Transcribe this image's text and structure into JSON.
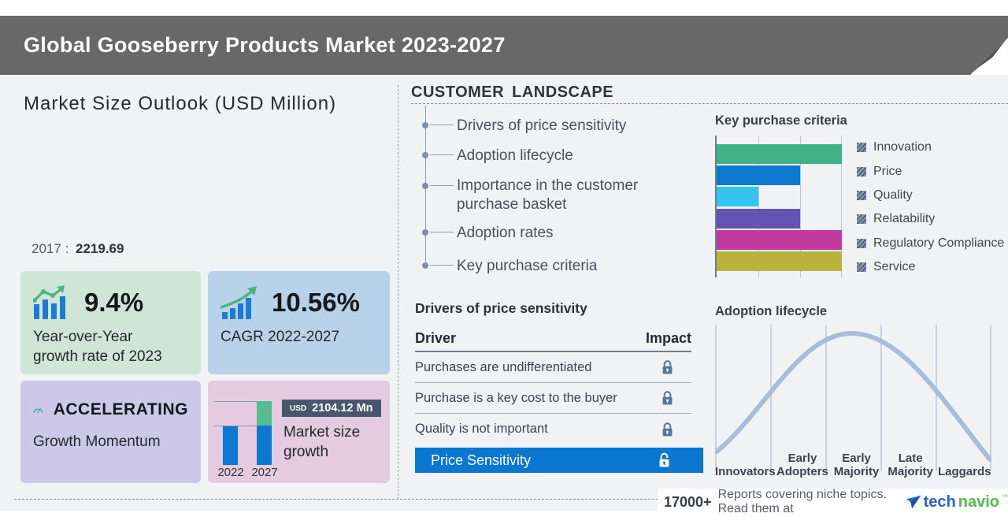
{
  "header": {
    "title": "Global Gooseberry Products Market 2023-2027"
  },
  "market_outlook": {
    "title": "Market Size Outlook (USD Million)",
    "base_year": {
      "year": "2017",
      "separator": ":",
      "value": "2219.69"
    },
    "cards": {
      "yoy": {
        "value": "9.4%",
        "label_line1": "Year-over-Year",
        "label_line2": "growth rate of 2023",
        "bg": "#cfe6d7",
        "icon": "bar-chart-trend-up"
      },
      "cagr": {
        "value": "10.56%",
        "label": "CAGR 2022-2027",
        "bg": "#b7d2e9",
        "icon": "growth-arrow-bars"
      },
      "momentum": {
        "value": "ACCELERATING",
        "label": "Growth Momentum",
        "bg": "#cdc7e8",
        "icon": "speedometer"
      }
    }
  },
  "customer_landscape": {
    "title": "CUSTOMER LANDSCAPE",
    "items": [
      "Drivers of price sensitivity",
      "Adoption lifecycle",
      "Importance in the customer purchase basket",
      "Adoption rates",
      "Key purchase criteria"
    ]
  },
  "price_sensitivity_table": {
    "title": "Drivers of price sensitivity",
    "columns": [
      "Driver",
      "Impact"
    ],
    "rows": [
      {
        "driver": "Purchases are undifferentiated",
        "impact_icon": "lock-closed"
      },
      {
        "driver": "Purchase is a key cost to the buyer",
        "impact_icon": "lock-closed"
      },
      {
        "driver": "Quality is not important",
        "impact_icon": "lock-closed"
      },
      {
        "driver": "Price Sensitivity",
        "impact_icon": "lock-open",
        "highlighted": true
      }
    ],
    "highlight_color": "#0a78d0"
  },
  "chart_data": [
    {
      "id": "key-purchase-criteria",
      "type": "bar",
      "orientation": "horizontal",
      "title": "Key purchase criteria",
      "categories": [
        "Innovation",
        "Price",
        "Quality",
        "Relatability",
        "Regulatory Compliance",
        "Service"
      ],
      "values": [
        3,
        2,
        1,
        2,
        3,
        3
      ],
      "xlim": [
        0,
        3
      ],
      "grid": true,
      "legend_position": "right",
      "colors": [
        "#3fb289",
        "#0b79cf",
        "#35c3f2",
        "#6354b4",
        "#c13a9f",
        "#bab23d"
      ]
    },
    {
      "id": "adoption-lifecycle",
      "type": "line",
      "curve": "bell",
      "title": "Adoption lifecycle",
      "segments": [
        "Innovators",
        "Early Adopters",
        "Early Majority",
        "Late Majority",
        "Laggards"
      ],
      "line_color": "#a9bdd6",
      "grid": true
    },
    {
      "id": "market-size-growth",
      "type": "bar",
      "categories": [
        "2022",
        "2027"
      ],
      "values_relative": [
        1,
        1.65
      ],
      "badge": {
        "currency": "USD",
        "amount": "2104.12 Mn"
      },
      "label_line1": "Market size",
      "label_line2": "growth",
      "colors": {
        "base": "#0b79cf",
        "growth": "#52bd8e"
      }
    }
  ],
  "footer": {
    "stat": "17000+",
    "text": "Reports covering niche topics. Read them at",
    "brand_part1": "tech",
    "brand_part2": "navio",
    "brand_tm": "™"
  }
}
